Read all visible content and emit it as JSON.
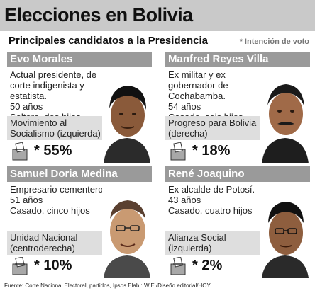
{
  "header": {
    "title": "Elecciones en Bolivia",
    "subtitle": "Principales candidatos a la Presidencia",
    "note": "* Intención de voto"
  },
  "candidates": [
    {
      "name": "Evo Morales",
      "desc": "Actual presidente, de corte indigenista y estatista.",
      "age": "50 años",
      "family": "Soltero, dos hijos",
      "party": "Movimiento al Socialismo (izquierda)",
      "pct": "* 55%"
    },
    {
      "name": "Manfred Reyes Villa",
      "desc": "Ex militar y ex gobernador de Cochabamba.",
      "age": "54 años",
      "family": "Casado, seis hijos",
      "party": "Progreso para Bolivia (derecha)",
      "pct": "* 18%"
    },
    {
      "name": "Samuel Doria Medina",
      "desc": "Empresario cementero.",
      "age": "51 años",
      "family": "Casado, cinco hijos",
      "party": "Unidad Nacional (centroderecha)",
      "pct": "* 10%"
    },
    {
      "name": "René Joaquino",
      "desc": "Ex alcalde de Potosí.",
      "age": "43 años",
      "family": "Casado, cuatro hijos",
      "party": "Alianza Social (izquierda)",
      "pct": "* 2%"
    }
  ],
  "footer": "Fuente: Corte Nacional Electoral, partidos, Ipsos Elab.: W.E./Diseño editorial/HOY"
}
